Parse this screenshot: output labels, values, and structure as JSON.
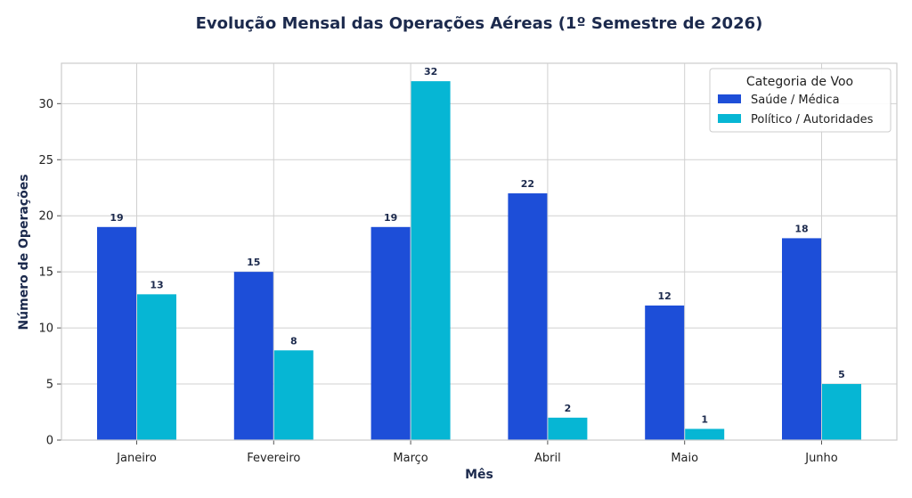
{
  "chart_data": {
    "type": "bar",
    "title": "Evolução Mensal das Operações Aéreas (1º Semestre de 2026)",
    "xlabel": "Mês",
    "ylabel": "Número de Operações",
    "categories": [
      "Janeiro",
      "Fevereiro",
      "Março",
      "Abril",
      "Maio",
      "Junho"
    ],
    "series": [
      {
        "name": "Saúde / Médica",
        "color": "#1d4ed8",
        "values": [
          19,
          15,
          19,
          22,
          12,
          18
        ]
      },
      {
        "name": "Político / Autoridades",
        "color": "#06b6d4",
        "values": [
          13,
          8,
          32,
          2,
          1,
          5
        ]
      }
    ],
    "ylim": [
      0,
      33.6
    ],
    "yticks": [
      0,
      5,
      10,
      15,
      20,
      25,
      30
    ],
    "grid": true,
    "legend": {
      "title": "Categoria de Voo",
      "position": "top-right"
    },
    "colors": {
      "text": "#1c2a4d",
      "grid": "#d0d0d0",
      "frame": "#cccccc"
    }
  }
}
